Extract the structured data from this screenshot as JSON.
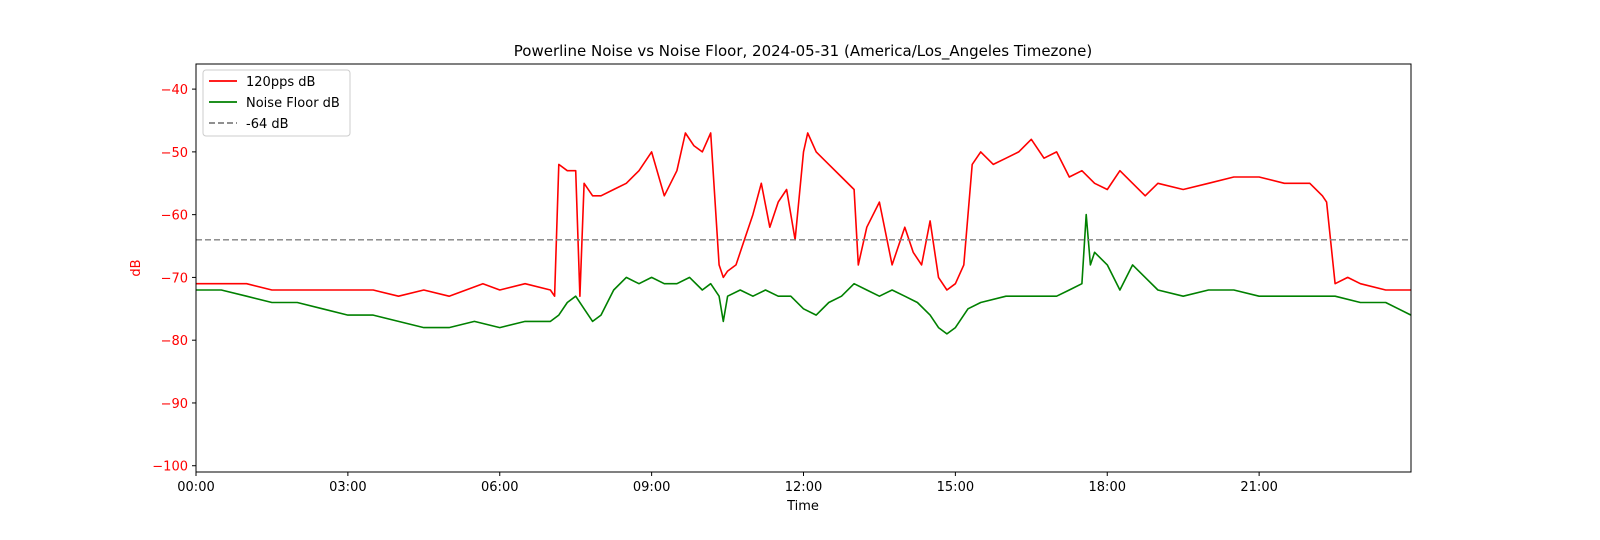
{
  "chart_data": {
    "type": "line",
    "title": "Powerline Noise vs Noise Floor, 2024-05-31 (America/Los_Angeles Timezone)",
    "xlabel": "Time",
    "ylabel": "dB",
    "x_unit": "time of day (HH:MM)",
    "xlim": [
      "00:00",
      "24:00"
    ],
    "ylim": [
      -101,
      -36
    ],
    "x_ticks": [
      "00:00",
      "03:00",
      "06:00",
      "09:00",
      "12:00",
      "15:00",
      "18:00",
      "21:00"
    ],
    "y_ticks": [
      -100,
      -90,
      -80,
      -70,
      -60,
      -50,
      -40
    ],
    "y_tick_labels": [
      "−100",
      "−90",
      "−80",
      "−70",
      "−60",
      "−50",
      "−40"
    ],
    "grid": false,
    "legend_position": "upper-left",
    "colors": {
      "axis_accent": "#ff0000"
    },
    "series": [
      {
        "name": "120pps dB",
        "color": "#ff0000",
        "style": "solid",
        "x": [
          "00:00",
          "00:30",
          "01:00",
          "01:30",
          "02:00",
          "02:30",
          "03:00",
          "03:30",
          "04:00",
          "04:30",
          "05:00",
          "05:20",
          "05:40",
          "06:00",
          "06:30",
          "07:00",
          "07:05",
          "07:10",
          "07:20",
          "07:30",
          "07:35",
          "07:40",
          "07:50",
          "08:00",
          "08:15",
          "08:30",
          "08:45",
          "09:00",
          "09:15",
          "09:30",
          "09:40",
          "09:50",
          "10:00",
          "10:10",
          "10:20",
          "10:25",
          "10:30",
          "10:40",
          "10:50",
          "11:00",
          "11:10",
          "11:20",
          "11:30",
          "11:40",
          "11:50",
          "12:00",
          "12:05",
          "12:15",
          "12:30",
          "12:45",
          "13:00",
          "13:05",
          "13:15",
          "13:30",
          "13:45",
          "14:00",
          "14:10",
          "14:20",
          "14:30",
          "14:40",
          "14:50",
          "15:00",
          "15:10",
          "15:20",
          "15:30",
          "15:45",
          "16:00",
          "16:15",
          "16:30",
          "16:45",
          "17:00",
          "17:15",
          "17:30",
          "17:45",
          "18:00",
          "18:15",
          "18:30",
          "18:45",
          "19:00",
          "19:30",
          "20:00",
          "20:30",
          "21:00",
          "21:30",
          "22:00",
          "22:15",
          "22:20",
          "22:30",
          "22:45",
          "23:00",
          "23:30",
          "24:00"
        ],
        "values": [
          -71,
          -71,
          -71,
          -72,
          -72,
          -72,
          -72,
          -72,
          -73,
          -72,
          -73,
          -72,
          -71,
          -72,
          -71,
          -72,
          -73,
          -52,
          -53,
          -53,
          -73,
          -55,
          -57,
          -57,
          -56,
          -55,
          -53,
          -50,
          -57,
          -53,
          -47,
          -49,
          -50,
          -47,
          -68,
          -70,
          -69,
          -68,
          -64,
          -60,
          -55,
          -62,
          -58,
          -56,
          -64,
          -50,
          -47,
          -50,
          -52,
          -54,
          -56,
          -68,
          -62,
          -58,
          -68,
          -62,
          -66,
          -68,
          -61,
          -70,
          -72,
          -71,
          -68,
          -52,
          -50,
          -52,
          -51,
          -50,
          -48,
          -51,
          -50,
          -54,
          -53,
          -55,
          -56,
          -53,
          -55,
          -57,
          -55,
          -56,
          -55,
          -54,
          -54,
          -55,
          -55,
          -57,
          -58,
          -71,
          -70,
          -71,
          -72,
          -72
        ]
      },
      {
        "name": "Noise Floor dB",
        "color": "#008000",
        "style": "solid",
        "x": [
          "00:00",
          "00:30",
          "01:00",
          "01:30",
          "02:00",
          "02:30",
          "03:00",
          "03:30",
          "04:00",
          "04:30",
          "05:00",
          "05:30",
          "06:00",
          "06:30",
          "07:00",
          "07:10",
          "07:20",
          "07:30",
          "07:40",
          "07:50",
          "08:00",
          "08:15",
          "08:30",
          "08:45",
          "09:00",
          "09:15",
          "09:30",
          "09:45",
          "10:00",
          "10:10",
          "10:20",
          "10:25",
          "10:30",
          "10:45",
          "11:00",
          "11:15",
          "11:30",
          "11:45",
          "12:00",
          "12:15",
          "12:30",
          "12:45",
          "13:00",
          "13:15",
          "13:30",
          "13:45",
          "14:00",
          "14:15",
          "14:30",
          "14:40",
          "14:50",
          "15:00",
          "15:15",
          "15:30",
          "16:00",
          "16:30",
          "17:00",
          "17:15",
          "17:30",
          "17:35",
          "17:40",
          "17:45",
          "18:00",
          "18:15",
          "18:30",
          "18:45",
          "19:00",
          "19:30",
          "20:00",
          "20:30",
          "21:00",
          "21:30",
          "22:00",
          "22:30",
          "23:00",
          "23:30",
          "24:00"
        ],
        "values": [
          -72,
          -72,
          -73,
          -74,
          -74,
          -75,
          -76,
          -76,
          -77,
          -78,
          -78,
          -77,
          -78,
          -77,
          -77,
          -76,
          -74,
          -73,
          -75,
          -77,
          -76,
          -72,
          -70,
          -71,
          -70,
          -71,
          -71,
          -70,
          -72,
          -71,
          -73,
          -77,
          -73,
          -72,
          -73,
          -72,
          -73,
          -73,
          -75,
          -76,
          -74,
          -73,
          -71,
          -72,
          -73,
          -72,
          -73,
          -74,
          -76,
          -78,
          -79,
          -78,
          -75,
          -74,
          -73,
          -73,
          -73,
          -72,
          -71,
          -60,
          -68,
          -66,
          -68,
          -72,
          -68,
          -70,
          -72,
          -73,
          -72,
          -72,
          -73,
          -73,
          -73,
          -73,
          -74,
          -74,
          -76
        ]
      },
      {
        "name": "-64 dB",
        "color": "#808080",
        "style": "dashed",
        "x": [
          "00:00",
          "24:00"
        ],
        "values": [
          -64,
          -64
        ]
      }
    ]
  }
}
